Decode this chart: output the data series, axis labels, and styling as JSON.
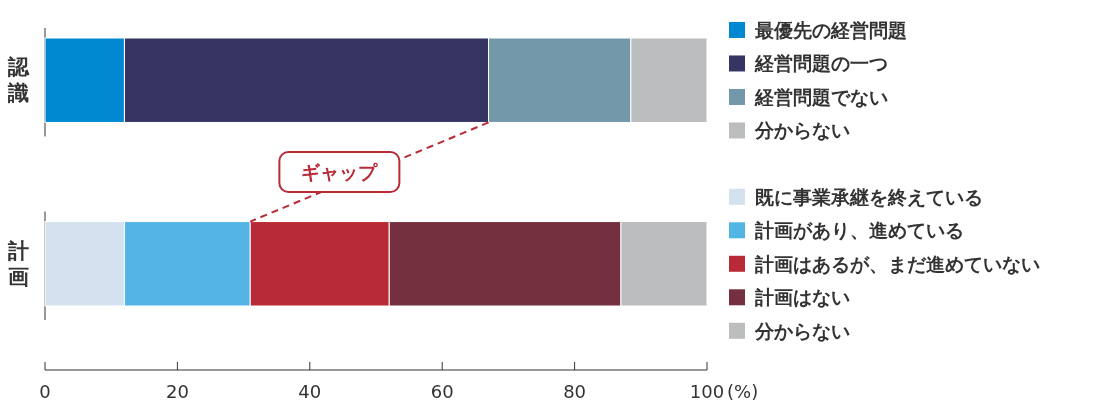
{
  "chart_data": {
    "type": "bar",
    "orientation": "horizontal",
    "stacked": true,
    "categories": [
      "認識",
      "計画"
    ],
    "series": [
      {
        "name": "最優先の経営問題",
        "color": "#0088d0",
        "values": [
          12,
          null
        ]
      },
      {
        "name": "経営問題の一つ",
        "color": "#353462",
        "values": [
          55,
          null
        ]
      },
      {
        "name": "経営問題でない",
        "color": "#7298aa",
        "values": [
          21.5,
          null
        ]
      },
      {
        "name": "分からない",
        "color": "#bcbdbf",
        "values": [
          11.5,
          null
        ]
      },
      {
        "name": "既に事業承継を終えている",
        "color": "#d3e2ee",
        "values": [
          null,
          12
        ]
      },
      {
        "name": "計画があり、進めている",
        "color": "#52b5e6",
        "values": [
          null,
          19
        ]
      },
      {
        "name": "計画はあるが、まだ進めていない",
        "color": "#b82a35",
        "values": [
          null,
          21
        ]
      },
      {
        "name": "計画はない",
        "color": "#74303f",
        "values": [
          null,
          35
        ]
      },
      {
        "name": "分からない",
        "color": "#bcbdbf",
        "values": [
          null,
          13
        ]
      }
    ],
    "xlim": [
      0,
      100
    ],
    "xticks": [
      0,
      20,
      40,
      60,
      80,
      100
    ],
    "xlabel": "(%)",
    "legend": "right",
    "annotations": [
      "ギャップ"
    ]
  }
}
